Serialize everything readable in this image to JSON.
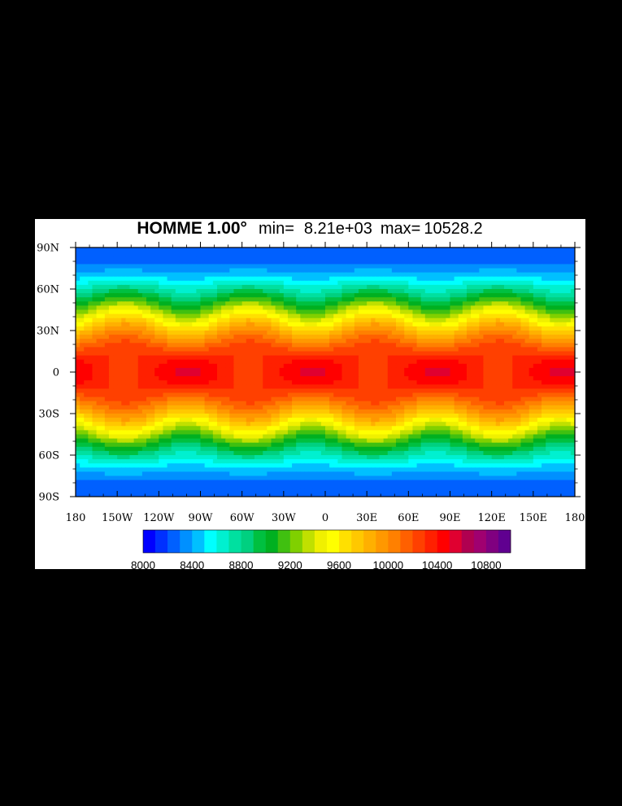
{
  "chart_data": {
    "type": "heatmap",
    "subtype": "filled-contour-map",
    "title": {
      "model": "HOMME 1.00°",
      "min_label": "min=",
      "min_value": "8.21e+03",
      "max_label": "max=",
      "max_value": "10528.2"
    },
    "field_min": 8210,
    "field_max": 10528.2,
    "x_axis": {
      "range": [
        -180,
        180
      ],
      "ticks": [
        -180,
        -150,
        -120,
        -90,
        -60,
        -30,
        0,
        30,
        60,
        90,
        120,
        150,
        180
      ],
      "tick_labels": [
        "180",
        "150W",
        "120W",
        "90W",
        "60W",
        "30W",
        "0",
        "30E",
        "60E",
        "90E",
        "120E",
        "150E",
        "180"
      ]
    },
    "y_axis": {
      "range": [
        -90,
        90
      ],
      "ticks": [
        90,
        60,
        30,
        0,
        -30,
        -60,
        -90
      ],
      "tick_labels": [
        "90N",
        "60N",
        "30N",
        "0",
        "30S",
        "60S",
        "90S"
      ]
    },
    "pattern": {
      "zonal_wavenumber": 4,
      "equatorial_maxima_lon": [
        -100,
        -10,
        80,
        170
      ],
      "midlatitude_minima_lon": [
        -145,
        -55,
        35,
        125
      ],
      "midlatitude_minima_lat": [
        50,
        -50
      ]
    },
    "colorbar": {
      "levels": [
        8000,
        8100,
        8200,
        8300,
        8400,
        8500,
        8600,
        8700,
        8800,
        8900,
        9000,
        9100,
        9200,
        9300,
        9400,
        9500,
        9600,
        9700,
        9800,
        9900,
        10000,
        10100,
        10200,
        10300,
        10400,
        10500,
        10600,
        10700,
        10800,
        10900,
        11000
      ],
      "labels": [
        "8000",
        "8400",
        "8800",
        "9200",
        "9600",
        "10000",
        "10400",
        "10800"
      ],
      "colors": [
        "#0000ff",
        "#0030ff",
        "#0060ff",
        "#0090ff",
        "#00c0ff",
        "#00ffff",
        "#00f0d0",
        "#00e0a0",
        "#00d080",
        "#00c040",
        "#00b020",
        "#40c010",
        "#80d000",
        "#c0e000",
        "#f0f000",
        "#ffff00",
        "#ffe000",
        "#ffc800",
        "#ffb000",
        "#ff9800",
        "#ff8000",
        "#ff6000",
        "#ff4000",
        "#ff2000",
        "#ff0000",
        "#e00030",
        "#b00050",
        "#a00070",
        "#800080",
        "#600090"
      ]
    }
  }
}
